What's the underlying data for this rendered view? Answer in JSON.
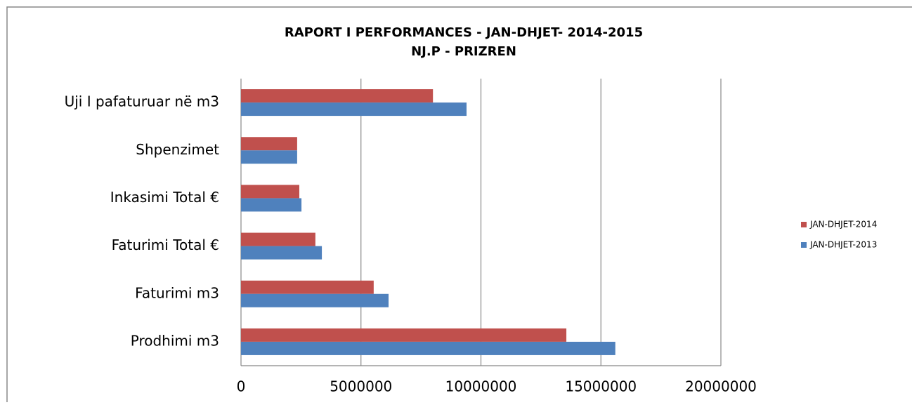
{
  "chart_data": {
    "type": "hbar",
    "title": "RAPORT I PERFORMANCES - JAN-DHJET- 2014-2015",
    "subtitle": "NJ.P - PRIZREN",
    "categories": [
      "Prodhimi m3",
      "Faturimi m3",
      "Faturimi Total €",
      "Inkasimi Total €",
      "Shpenzimet",
      "Uji I pafaturuar në m3"
    ],
    "series": [
      {
        "name": "JAN-DHJET-2014",
        "color": "#c0504d",
        "values": [
          13560000,
          5530000,
          3100000,
          2430000,
          2340000,
          8000000
        ]
      },
      {
        "name": "JAN-DHJET-2013",
        "color": "#4f81bd",
        "values": [
          15600000,
          6150000,
          3370000,
          2520000,
          2340000,
          9400000
        ]
      }
    ],
    "xlim": [
      0,
      20000000
    ],
    "xticks": [
      0,
      5000000,
      10000000,
      15000000,
      20000000
    ],
    "grid": true,
    "legend": "right"
  }
}
